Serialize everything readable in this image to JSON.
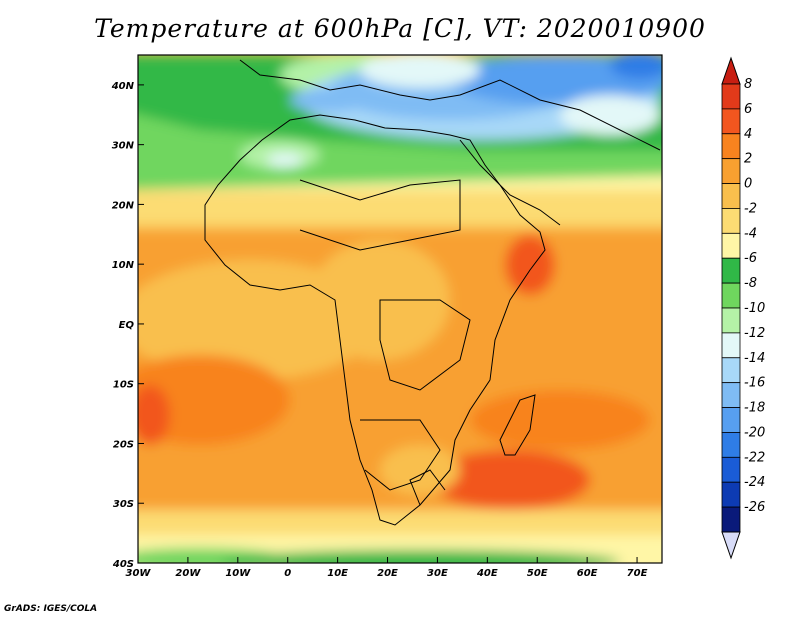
{
  "title": "Temperature at 600hPa [C], VT: 2020010900",
  "footer": "GrADS: IGES/COLA",
  "map": {
    "lon_range": [
      -30,
      75
    ],
    "lat_range": [
      -40,
      45
    ],
    "x_ticks": [
      {
        "value": -30,
        "label": "30W"
      },
      {
        "value": -20,
        "label": "20W"
      },
      {
        "value": -10,
        "label": "10W"
      },
      {
        "value": 0,
        "label": "0"
      },
      {
        "value": 10,
        "label": "10E"
      },
      {
        "value": 20,
        "label": "20E"
      },
      {
        "value": 30,
        "label": "30E"
      },
      {
        "value": 40,
        "label": "40E"
      },
      {
        "value": 50,
        "label": "50E"
      },
      {
        "value": 60,
        "label": "60E"
      },
      {
        "value": 70,
        "label": "70E"
      }
    ],
    "y_ticks": [
      {
        "value": 40,
        "label": "40N"
      },
      {
        "value": 30,
        "label": "30N"
      },
      {
        "value": 20,
        "label": "20N"
      },
      {
        "value": 10,
        "label": "10N"
      },
      {
        "value": 0,
        "label": "EQ"
      },
      {
        "value": -10,
        "label": "10S"
      },
      {
        "value": -20,
        "label": "20S"
      },
      {
        "value": -30,
        "label": "30S"
      },
      {
        "value": -40,
        "label": "40S"
      }
    ]
  },
  "colorbar": {
    "levels": [
      {
        "label": "8",
        "color": "#e23a1a"
      },
      {
        "label": "6",
        "color": "#f2561f"
      },
      {
        "label": "4",
        "color": "#f8831f"
      },
      {
        "label": "2",
        "color": "#f8a030"
      },
      {
        "label": "0",
        "color": "#f9bf4d"
      },
      {
        "label": "-2",
        "color": "#fcdc73"
      },
      {
        "label": "-4",
        "color": "#fff6a6"
      },
      {
        "label": "-6",
        "color": "#30b847"
      },
      {
        "label": "-8",
        "color": "#6fd65e"
      },
      {
        "label": "-10",
        "color": "#b4f2a7"
      },
      {
        "label": "-12",
        "color": "#e3f8f8"
      },
      {
        "label": "-14",
        "color": "#a8d8f8"
      },
      {
        "label": "-16",
        "color": "#7fbcf4"
      },
      {
        "label": "-18",
        "color": "#579ff0"
      },
      {
        "label": "-20",
        "color": "#2f7de6"
      },
      {
        "label": "-22",
        "color": "#1a5cd6"
      },
      {
        "label": "-24",
        "color": "#0d3bb3"
      },
      {
        "label": "-26",
        "color": "#0a1a7a"
      }
    ],
    "top_arrow_color": "#c81e12",
    "bottom_arrow_color": "#d8dcf8"
  }
}
